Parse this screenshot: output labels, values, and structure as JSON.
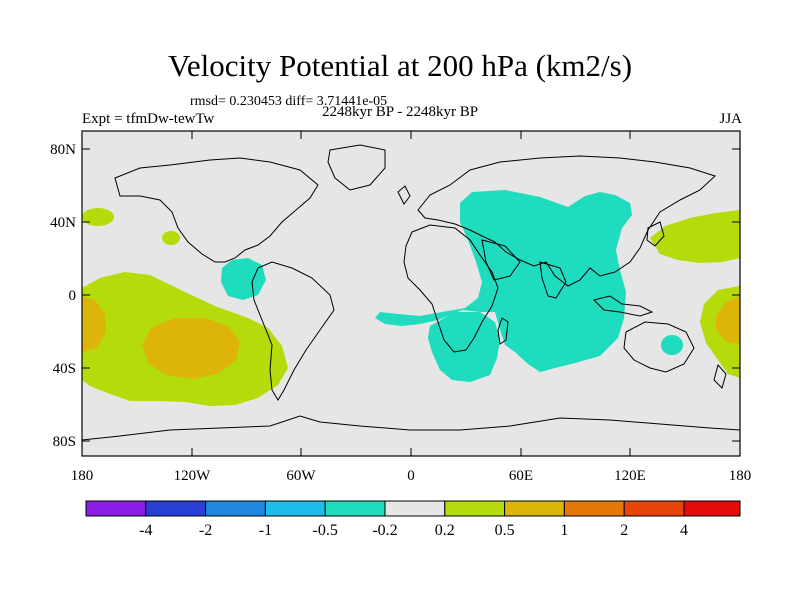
{
  "title": "Velocity Potential at 200 hPa (km2/s)",
  "stats_text": "rmsd= 0.230453 diff= 3.71441e-05",
  "experiment_text": "Expt = tfmDw-tewTw",
  "period_text": "2248kyr BP - 2248kyr BP",
  "season_text": "JJA",
  "lat_labels": [
    "80N",
    "40N",
    "0",
    "40S",
    "80S"
  ],
  "lon_labels": [
    "180",
    "120W",
    "60W",
    "0",
    "60E",
    "120E",
    "180"
  ],
  "colorbar": {
    "colors": [
      "#8a1ee6",
      "#2a3fd6",
      "#1e87e0",
      "#1ebdea",
      "#1edcbd",
      "#e6e6e6",
      "#b4dc0a",
      "#dcb40a",
      "#e6780a",
      "#e6460a",
      "#e60a0a"
    ],
    "labels": [
      "-4",
      "-2",
      "-1",
      "-0.5",
      "-0.2",
      "0.2",
      "0.5",
      "1",
      "2",
      "4"
    ]
  },
  "palette": {
    "background": "#e6e6e6",
    "positive_weak": "#b4dc0a",
    "positive_medium": "#dcb40a",
    "negative_weak": "#1edcbd"
  }
}
